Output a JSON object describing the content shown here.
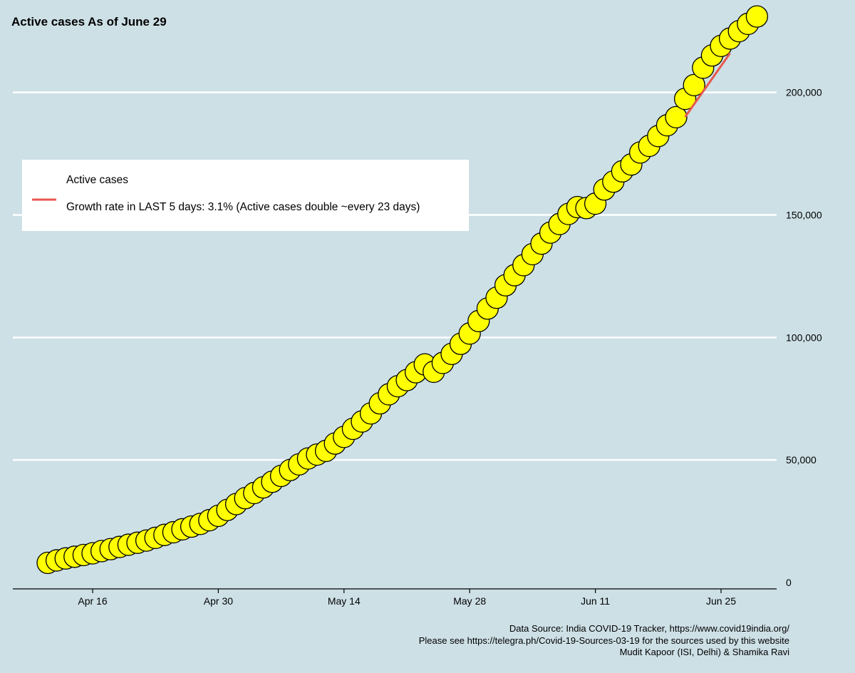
{
  "chart_data": {
    "type": "scatter",
    "title": "Active cases As of June 29",
    "xlabel": "",
    "ylabel": "",
    "x_start_date": "Apr 11",
    "x_ticks": [
      {
        "day": 5,
        "label": "Apr 16"
      },
      {
        "day": 19,
        "label": "Apr 30"
      },
      {
        "day": 33,
        "label": "May 14"
      },
      {
        "day": 47,
        "label": "May 28"
      },
      {
        "day": 61,
        "label": "Jun 11"
      },
      {
        "day": 75,
        "label": "Jun 25"
      }
    ],
    "y_ticks": [
      {
        "value": 0,
        "label": "0"
      },
      {
        "value": 50000,
        "label": "50,000"
      },
      {
        "value": 100000,
        "label": "100,000"
      },
      {
        "value": 150000,
        "label": "150,000"
      },
      {
        "value": 200000,
        "label": "200,000"
      }
    ],
    "xlim": [
      0,
      80
    ],
    "ylim": [
      0,
      220000
    ],
    "series": [
      {
        "name": "Active cases",
        "marker_color": "#ffff00",
        "x": [
          0,
          1,
          2,
          3,
          4,
          5,
          6,
          7,
          8,
          9,
          10,
          11,
          12,
          13,
          14,
          15,
          16,
          17,
          18,
          19,
          20,
          21,
          22,
          23,
          24,
          25,
          26,
          27,
          28,
          29,
          30,
          31,
          32,
          33,
          34,
          35,
          36,
          37,
          38,
          39,
          40,
          41,
          42,
          43,
          44,
          45,
          46,
          47,
          48,
          49,
          50,
          51,
          52,
          53,
          54,
          55,
          56,
          57,
          58,
          59,
          60,
          61,
          62,
          63,
          64,
          65,
          66,
          67,
          68,
          69,
          70,
          71,
          72,
          73,
          74,
          75,
          76,
          77,
          78,
          79
        ],
        "values": [
          8000,
          9000,
          9800,
          10500,
          11200,
          11900,
          12800,
          13600,
          14500,
          15400,
          16200,
          17100,
          18200,
          19400,
          20500,
          21700,
          22800,
          23900,
          25400,
          27200,
          29600,
          32000,
          34400,
          36500,
          38800,
          41100,
          43500,
          45900,
          48200,
          50600,
          52200,
          53700,
          56700,
          59400,
          62700,
          65700,
          69000,
          73100,
          76800,
          80100,
          82600,
          85800,
          89000,
          86000,
          89600,
          93300,
          97400,
          101600,
          106700,
          111800,
          116200,
          121300,
          125400,
          129500,
          134000,
          138300,
          142800,
          146300,
          150400,
          153200,
          152800,
          154600,
          160400,
          163600,
          167800,
          170600,
          175500,
          178200,
          182200,
          186600,
          189900,
          197400,
          203000,
          210100,
          215100,
          219000,
          222000,
          225000,
          228000,
          231000
        ]
      },
      {
        "name": "Growth rate in LAST 5 days: 3.1% (Active cases double ~every 23 days)",
        "line_color": "#e8574d",
        "x": [
          71,
          76
        ],
        "values": [
          190000,
          216000
        ]
      }
    ],
    "legend": {
      "position": "top-left",
      "entries": [
        {
          "label": "Active cases",
          "swatch": "none"
        },
        {
          "label": "Growth rate in LAST 5 days: 3.1% (Active cases double ~every 23 days)",
          "swatch": "line",
          "color": "#e8574d"
        }
      ]
    },
    "annotations": [
      "Data Source: India COVID-19 Tracker, https://www.covid19india.org/",
      "Please see https://telegra.ph/Covid-19-Sources-03-19 for the sources used by this website",
      "Mudit Kapoor (ISI, Delhi) & Shamika Ravi"
    ],
    "grid": true
  }
}
